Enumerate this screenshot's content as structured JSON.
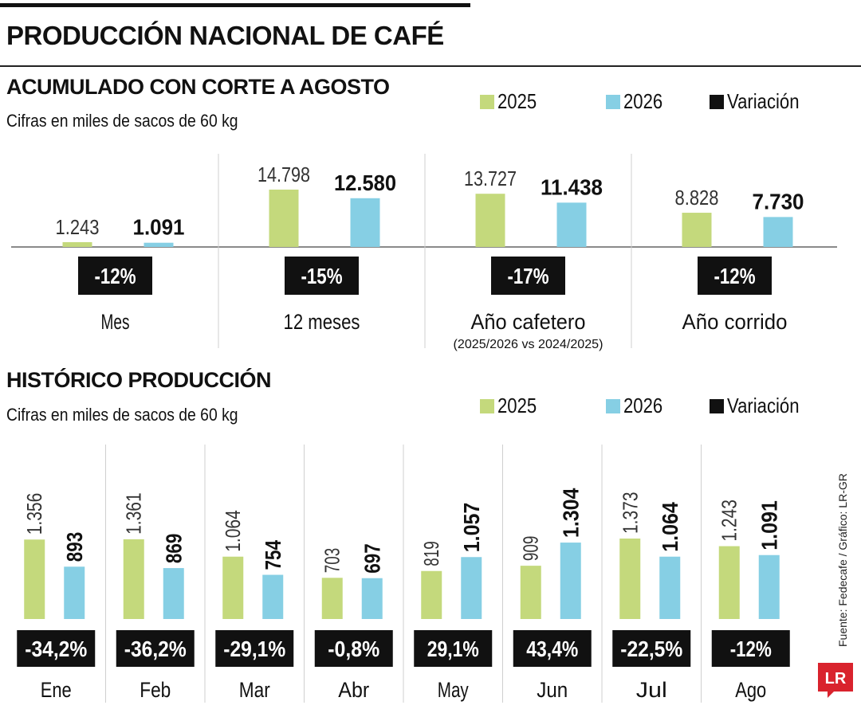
{
  "header": {
    "title": "PRODUCCIÓN NACIONAL DE CAFÉ"
  },
  "legend": {
    "y2025": "2025",
    "y2026": "2026",
    "variation": "Variación"
  },
  "colors": {
    "y2025": "#c4d97c",
    "y2026": "#86cfe4",
    "variation_bg": "#111111",
    "variation_text": "#ffffff",
    "logo_red": "#d9232d"
  },
  "chart_data": [
    {
      "type": "bar",
      "title": "ACUMULADO CON CORTE A AGOSTO",
      "subtitle": "Cifras en miles de sacos de 60 kg",
      "categories": [
        "Mes",
        "12 meses",
        "Año cafetero",
        "Año corrido"
      ],
      "category_notes": [
        "",
        "",
        "(2025/2026 vs 2024/2025)",
        ""
      ],
      "series": [
        {
          "name": "2025",
          "values": [
            1243,
            14798,
            13727,
            8828
          ],
          "labels": [
            "1.243",
            "14.798",
            "13.727",
            "8.828"
          ]
        },
        {
          "name": "2026",
          "values": [
            1091,
            12580,
            11438,
            7730
          ],
          "labels": [
            "1.091",
            "12.580",
            "11.438",
            "7.730"
          ]
        }
      ],
      "variation": [
        "-12%",
        "-15%",
        "-17%",
        "-12%"
      ],
      "legend_position": "top-right"
    },
    {
      "type": "bar",
      "title": "HISTÓRICO PRODUCCIÓN",
      "subtitle": "Cifras en miles de sacos de 60 kg",
      "categories": [
        "Ene",
        "Feb",
        "Mar",
        "Abr",
        "May",
        "Jun",
        "Jul",
        "Ago"
      ],
      "series": [
        {
          "name": "2025",
          "values": [
            1356,
            1361,
            1064,
            703,
            819,
            909,
            1373,
            1243
          ],
          "labels": [
            "1.356",
            "1.361",
            "1.064",
            "703",
            "819",
            "909",
            "1.373",
            "1.243"
          ]
        },
        {
          "name": "2026",
          "values": [
            893,
            869,
            754,
            697,
            1057,
            1304,
            1064,
            1091
          ],
          "labels": [
            "893",
            "869",
            "754",
            "697",
            "1.057",
            "1.304",
            "1.064",
            "1.091"
          ]
        }
      ],
      "variation": [
        "-34,2%",
        "-36,2%",
        "-29,1%",
        "-0,8%",
        "29,1%",
        "43,4%",
        "-22,5%",
        "-12%"
      ],
      "legend_position": "top-right"
    }
  ],
  "source": "Fuente: Fedecafe / Gráfico: LR-GR",
  "logo": "LR"
}
